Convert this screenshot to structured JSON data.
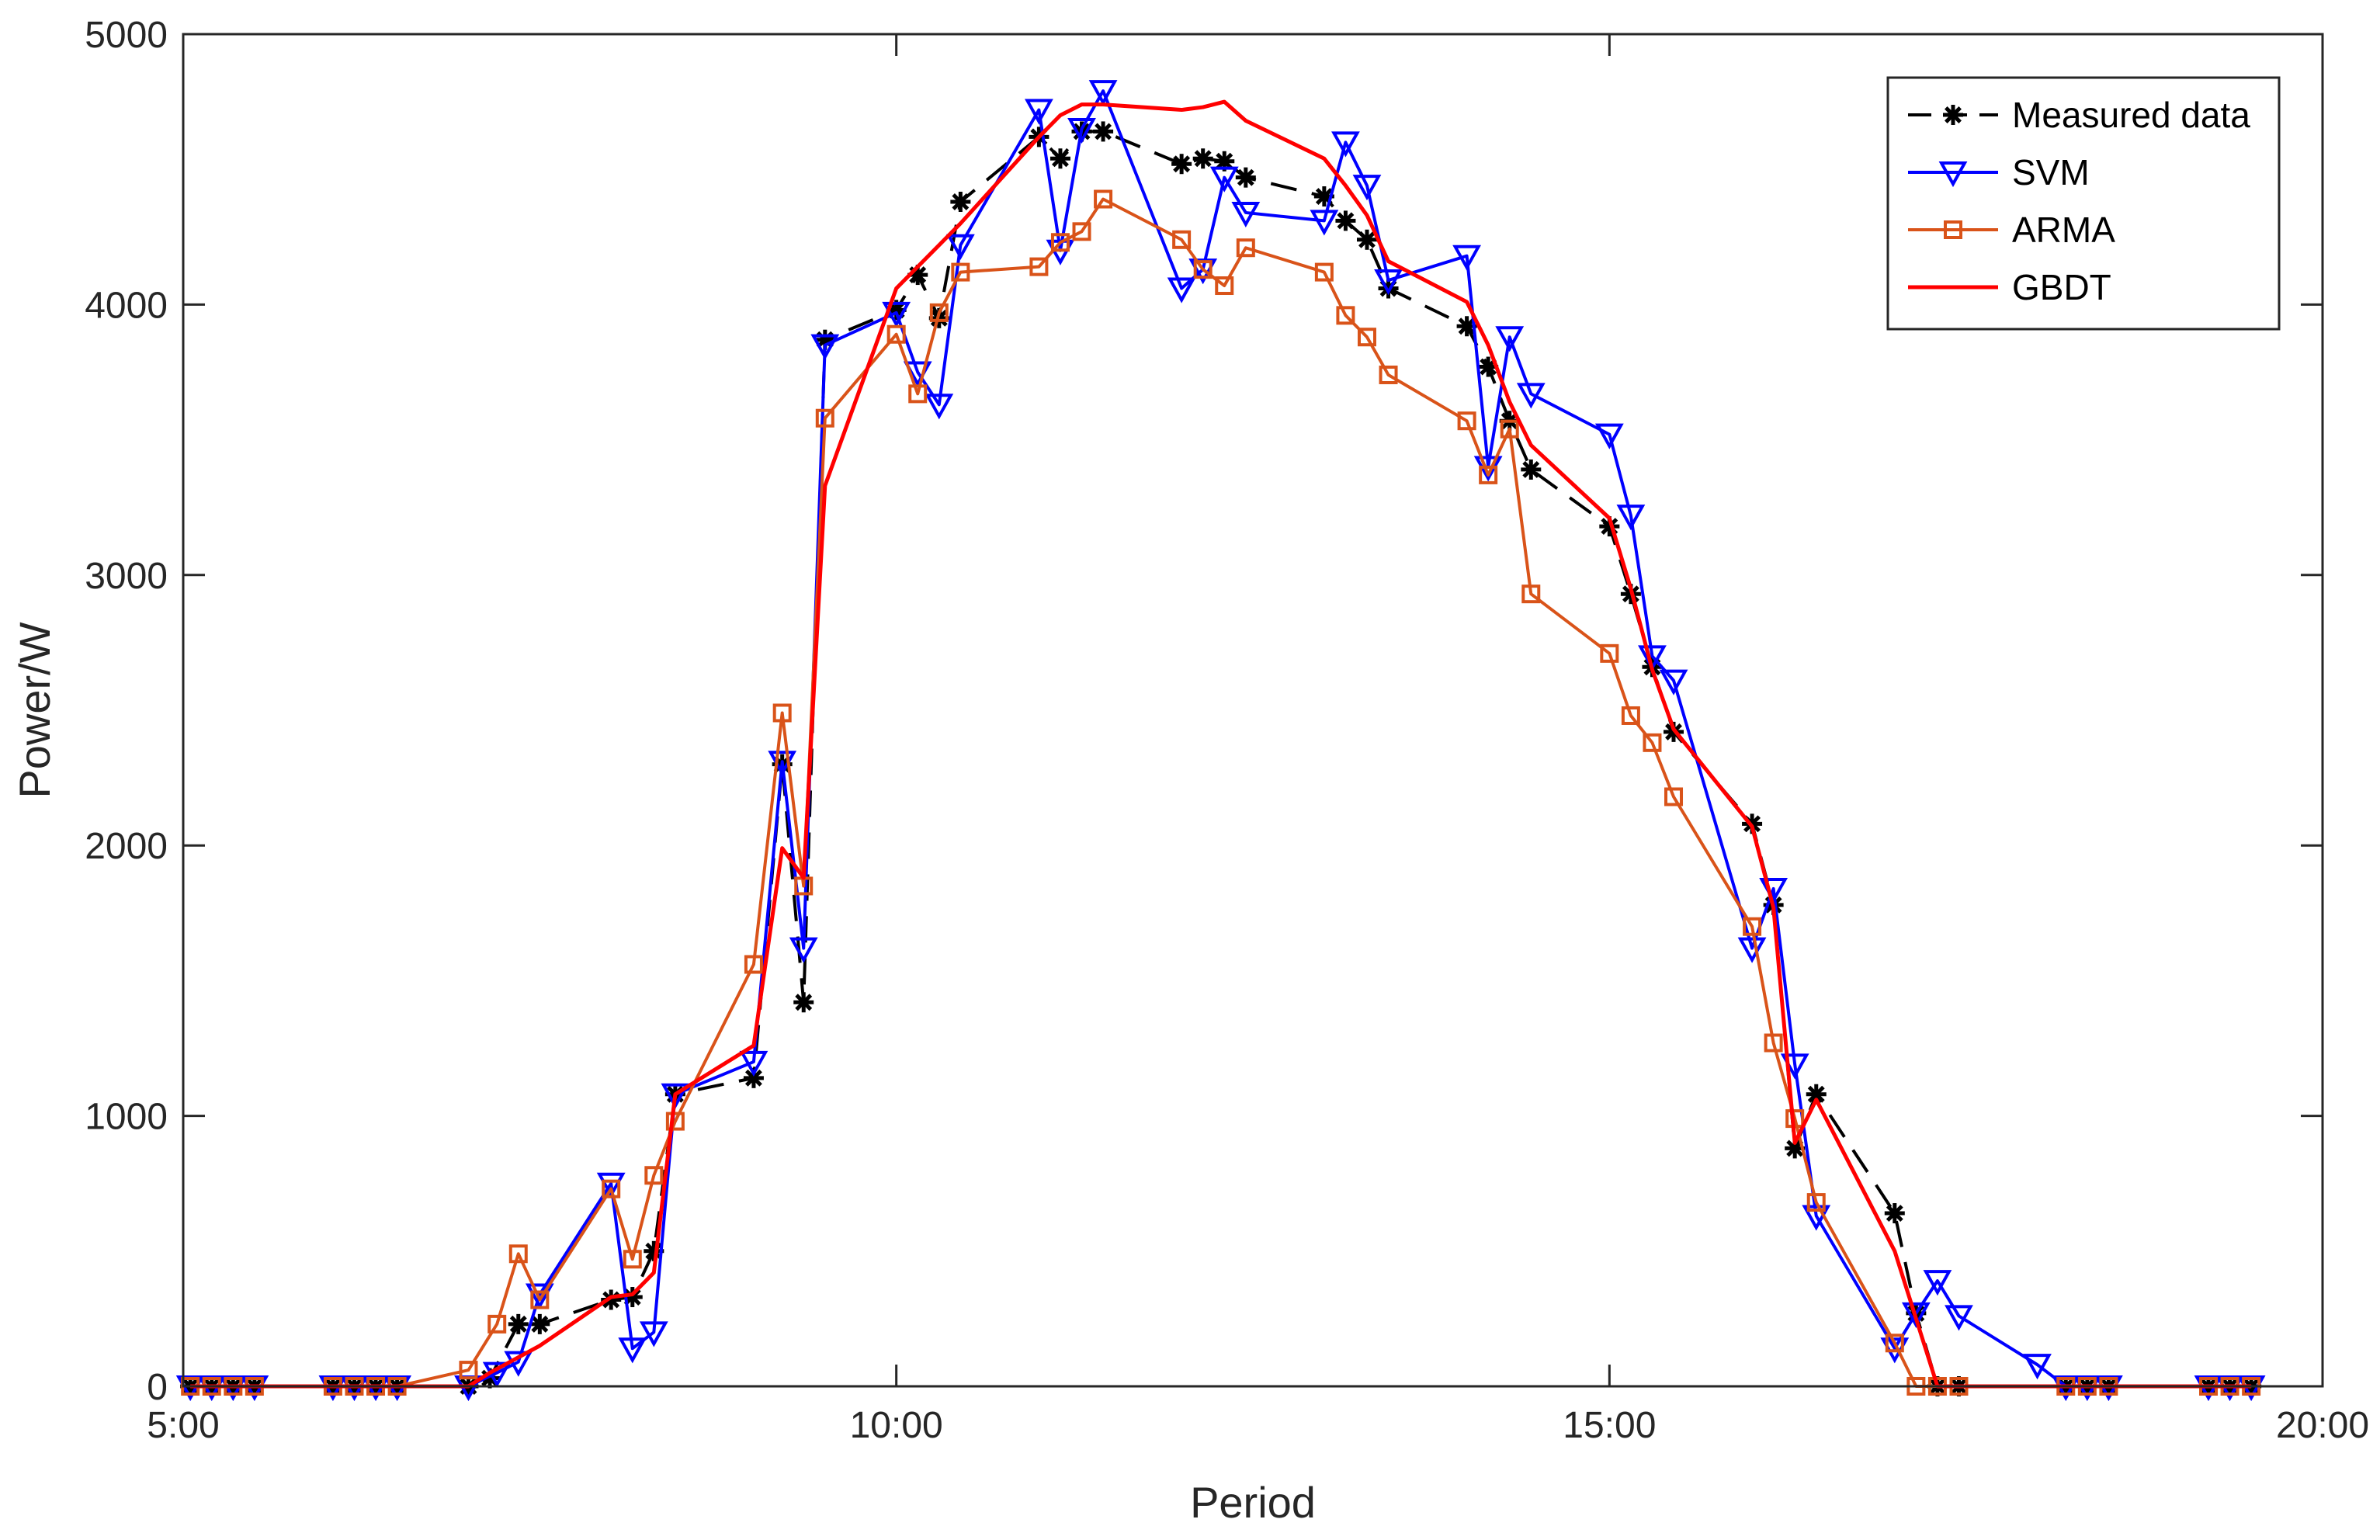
{
  "chart_data": {
    "type": "line",
    "xlabel": "Period",
    "ylabel": "Power/W",
    "x_unit": "hour of day",
    "xlim": [
      5,
      20
    ],
    "ylim": [
      0,
      5000
    ],
    "x_ticks": [
      5,
      10,
      15,
      20
    ],
    "x_tick_labels": [
      "5:00",
      "10:00",
      "15:00",
      "20:00"
    ],
    "y_ticks": [
      0,
      1000,
      2000,
      3000,
      4000,
      5000
    ],
    "y_tick_labels": [
      "0",
      "1000",
      "2000",
      "3000",
      "4000",
      "5000"
    ],
    "grid": false,
    "legend_position": "top-right",
    "series": [
      {
        "name": "Measured data",
        "color": "#000000",
        "line_style": "dashed",
        "marker": "asterisk",
        "points": [
          [
            5.05,
            0
          ],
          [
            5.2,
            0
          ],
          [
            5.35,
            0
          ],
          [
            5.5,
            0
          ],
          [
            6.05,
            0
          ],
          [
            6.2,
            0
          ],
          [
            6.35,
            0
          ],
          [
            6.5,
            0
          ],
          [
            7.0,
            0
          ],
          [
            7.15,
            30
          ],
          [
            7.35,
            230
          ],
          [
            7.5,
            230
          ],
          [
            8.0,
            320
          ],
          [
            8.15,
            330
          ],
          [
            8.3,
            500
          ],
          [
            8.45,
            1080
          ],
          [
            9.0,
            1140
          ],
          [
            9.2,
            2300
          ],
          [
            9.35,
            1420
          ],
          [
            9.5,
            3870
          ],
          [
            10.0,
            3980
          ],
          [
            10.15,
            4110
          ],
          [
            10.3,
            3950
          ],
          [
            10.45,
            4380
          ],
          [
            11.0,
            4620
          ],
          [
            11.15,
            4540
          ],
          [
            11.3,
            4640
          ],
          [
            11.45,
            4640
          ],
          [
            12.0,
            4520
          ],
          [
            12.15,
            4540
          ],
          [
            12.3,
            4530
          ],
          [
            12.45,
            4470
          ],
          [
            13.0,
            4400
          ],
          [
            13.15,
            4310
          ],
          [
            13.3,
            4240
          ],
          [
            13.45,
            4060
          ],
          [
            14.0,
            3920
          ],
          [
            14.15,
            3770
          ],
          [
            14.3,
            3570
          ],
          [
            14.45,
            3390
          ],
          [
            15.0,
            3180
          ],
          [
            15.15,
            2930
          ],
          [
            15.3,
            2660
          ],
          [
            15.45,
            2420
          ],
          [
            16.0,
            2080
          ],
          [
            16.15,
            1780
          ],
          [
            16.3,
            880
          ],
          [
            16.45,
            1080
          ],
          [
            17.0,
            640
          ],
          [
            17.15,
            270
          ],
          [
            17.3,
            0
          ],
          [
            17.45,
            0
          ],
          [
            18.2,
            0
          ],
          [
            18.35,
            0
          ],
          [
            18.5,
            0
          ],
          [
            19.2,
            0
          ],
          [
            19.35,
            0
          ],
          [
            19.5,
            0
          ]
        ]
      },
      {
        "name": "SVM",
        "color": "#0000ff",
        "line_style": "solid",
        "marker": "triangle-down",
        "points": [
          [
            5.05,
            0
          ],
          [
            5.2,
            0
          ],
          [
            5.35,
            0
          ],
          [
            5.5,
            0
          ],
          [
            6.05,
            0
          ],
          [
            6.2,
            0
          ],
          [
            6.35,
            0
          ],
          [
            6.5,
            0
          ],
          [
            7.0,
            0
          ],
          [
            7.2,
            50
          ],
          [
            7.35,
            90
          ],
          [
            7.5,
            340
          ],
          [
            8.0,
            750
          ],
          [
            8.15,
            140
          ],
          [
            8.3,
            200
          ],
          [
            8.45,
            1080
          ],
          [
            9.0,
            1200
          ],
          [
            9.2,
            2310
          ],
          [
            9.35,
            1620
          ],
          [
            9.5,
            3850
          ],
          [
            10.0,
            3970
          ],
          [
            10.15,
            3750
          ],
          [
            10.3,
            3630
          ],
          [
            10.45,
            4220
          ],
          [
            11.0,
            4720
          ],
          [
            11.15,
            4200
          ],
          [
            11.3,
            4650
          ],
          [
            11.45,
            4790
          ],
          [
            12.0,
            4060
          ],
          [
            12.15,
            4130
          ],
          [
            12.3,
            4470
          ],
          [
            12.45,
            4340
          ],
          [
            13.0,
            4310
          ],
          [
            13.15,
            4600
          ],
          [
            13.3,
            4440
          ],
          [
            13.45,
            4090
          ],
          [
            14.0,
            4180
          ],
          [
            14.15,
            3400
          ],
          [
            14.3,
            3880
          ],
          [
            14.45,
            3670
          ],
          [
            15.0,
            3520
          ],
          [
            15.15,
            3220
          ],
          [
            15.3,
            2700
          ],
          [
            15.45,
            2610
          ],
          [
            16.0,
            1620
          ],
          [
            16.15,
            1840
          ],
          [
            16.3,
            1190
          ],
          [
            16.45,
            630
          ],
          [
            17.0,
            140
          ],
          [
            17.15,
            270
          ],
          [
            17.3,
            390
          ],
          [
            17.45,
            260
          ],
          [
            18.0,
            80
          ],
          [
            18.2,
            0
          ],
          [
            18.35,
            0
          ],
          [
            18.5,
            0
          ],
          [
            19.2,
            0
          ],
          [
            19.35,
            0
          ],
          [
            19.5,
            0
          ]
        ]
      },
      {
        "name": "ARMA",
        "color": "#d95319",
        "line_style": "solid",
        "marker": "square",
        "points": [
          [
            5.05,
            0
          ],
          [
            5.2,
            0
          ],
          [
            5.35,
            0
          ],
          [
            5.5,
            0
          ],
          [
            6.05,
            0
          ],
          [
            6.2,
            0
          ],
          [
            6.35,
            0
          ],
          [
            6.5,
            0
          ],
          [
            7.0,
            60
          ],
          [
            7.2,
            230
          ],
          [
            7.35,
            490
          ],
          [
            7.5,
            320
          ],
          [
            8.0,
            730
          ],
          [
            8.15,
            470
          ],
          [
            8.3,
            780
          ],
          [
            8.45,
            980
          ],
          [
            9.0,
            1560
          ],
          [
            9.2,
            2490
          ],
          [
            9.35,
            1850
          ],
          [
            9.5,
            3580
          ],
          [
            10.0,
            3890
          ],
          [
            10.15,
            3670
          ],
          [
            10.3,
            3970
          ],
          [
            10.45,
            4120
          ],
          [
            11.0,
            4140
          ],
          [
            11.15,
            4230
          ],
          [
            11.3,
            4270
          ],
          [
            11.45,
            4390
          ],
          [
            12.0,
            4240
          ],
          [
            12.15,
            4130
          ],
          [
            12.3,
            4070
          ],
          [
            12.45,
            4210
          ],
          [
            13.0,
            4120
          ],
          [
            13.15,
            3960
          ],
          [
            13.3,
            3880
          ],
          [
            13.45,
            3740
          ],
          [
            14.0,
            3570
          ],
          [
            14.15,
            3370
          ],
          [
            14.3,
            3540
          ],
          [
            14.45,
            2930
          ],
          [
            15.0,
            2710
          ],
          [
            15.15,
            2480
          ],
          [
            15.3,
            2380
          ],
          [
            15.45,
            2180
          ],
          [
            16.0,
            1700
          ],
          [
            16.15,
            1270
          ],
          [
            16.3,
            990
          ],
          [
            16.45,
            680
          ],
          [
            17.0,
            160
          ],
          [
            17.15,
            0
          ],
          [
            17.3,
            0
          ],
          [
            17.45,
            0
          ],
          [
            18.2,
            0
          ],
          [
            18.35,
            0
          ],
          [
            18.5,
            0
          ],
          [
            19.2,
            0
          ],
          [
            19.35,
            0
          ],
          [
            19.5,
            0
          ]
        ]
      },
      {
        "name": "GBDT",
        "color": "#ff0000",
        "line_style": "solid",
        "marker": "none",
        "points": [
          [
            5.05,
            0
          ],
          [
            5.5,
            0
          ],
          [
            6.05,
            0
          ],
          [
            6.5,
            0
          ],
          [
            7.0,
            0
          ],
          [
            7.15,
            50
          ],
          [
            7.5,
            150
          ],
          [
            8.0,
            330
          ],
          [
            8.15,
            340
          ],
          [
            8.3,
            420
          ],
          [
            8.45,
            1080
          ],
          [
            9.0,
            1260
          ],
          [
            9.2,
            1990
          ],
          [
            9.35,
            1880
          ],
          [
            9.5,
            3330
          ],
          [
            10.0,
            4060
          ],
          [
            10.15,
            4140
          ],
          [
            10.45,
            4300
          ],
          [
            11.0,
            4620
          ],
          [
            11.15,
            4700
          ],
          [
            11.3,
            4740
          ],
          [
            11.45,
            4740
          ],
          [
            12.0,
            4720
          ],
          [
            12.15,
            4730
          ],
          [
            12.3,
            4750
          ],
          [
            12.45,
            4680
          ],
          [
            13.0,
            4540
          ],
          [
            13.15,
            4440
          ],
          [
            13.3,
            4330
          ],
          [
            13.45,
            4160
          ],
          [
            14.0,
            4010
          ],
          [
            14.15,
            3850
          ],
          [
            14.3,
            3640
          ],
          [
            14.45,
            3480
          ],
          [
            15.0,
            3210
          ],
          [
            15.15,
            2950
          ],
          [
            15.3,
            2650
          ],
          [
            15.45,
            2430
          ],
          [
            16.0,
            2070
          ],
          [
            16.15,
            1770
          ],
          [
            16.3,
            900
          ],
          [
            16.45,
            1060
          ],
          [
            17.0,
            500
          ],
          [
            17.15,
            250
          ],
          [
            17.3,
            0
          ],
          [
            17.45,
            0
          ],
          [
            18.2,
            0
          ],
          [
            18.5,
            0
          ],
          [
            19.2,
            0
          ],
          [
            19.5,
            0
          ]
        ]
      }
    ]
  }
}
